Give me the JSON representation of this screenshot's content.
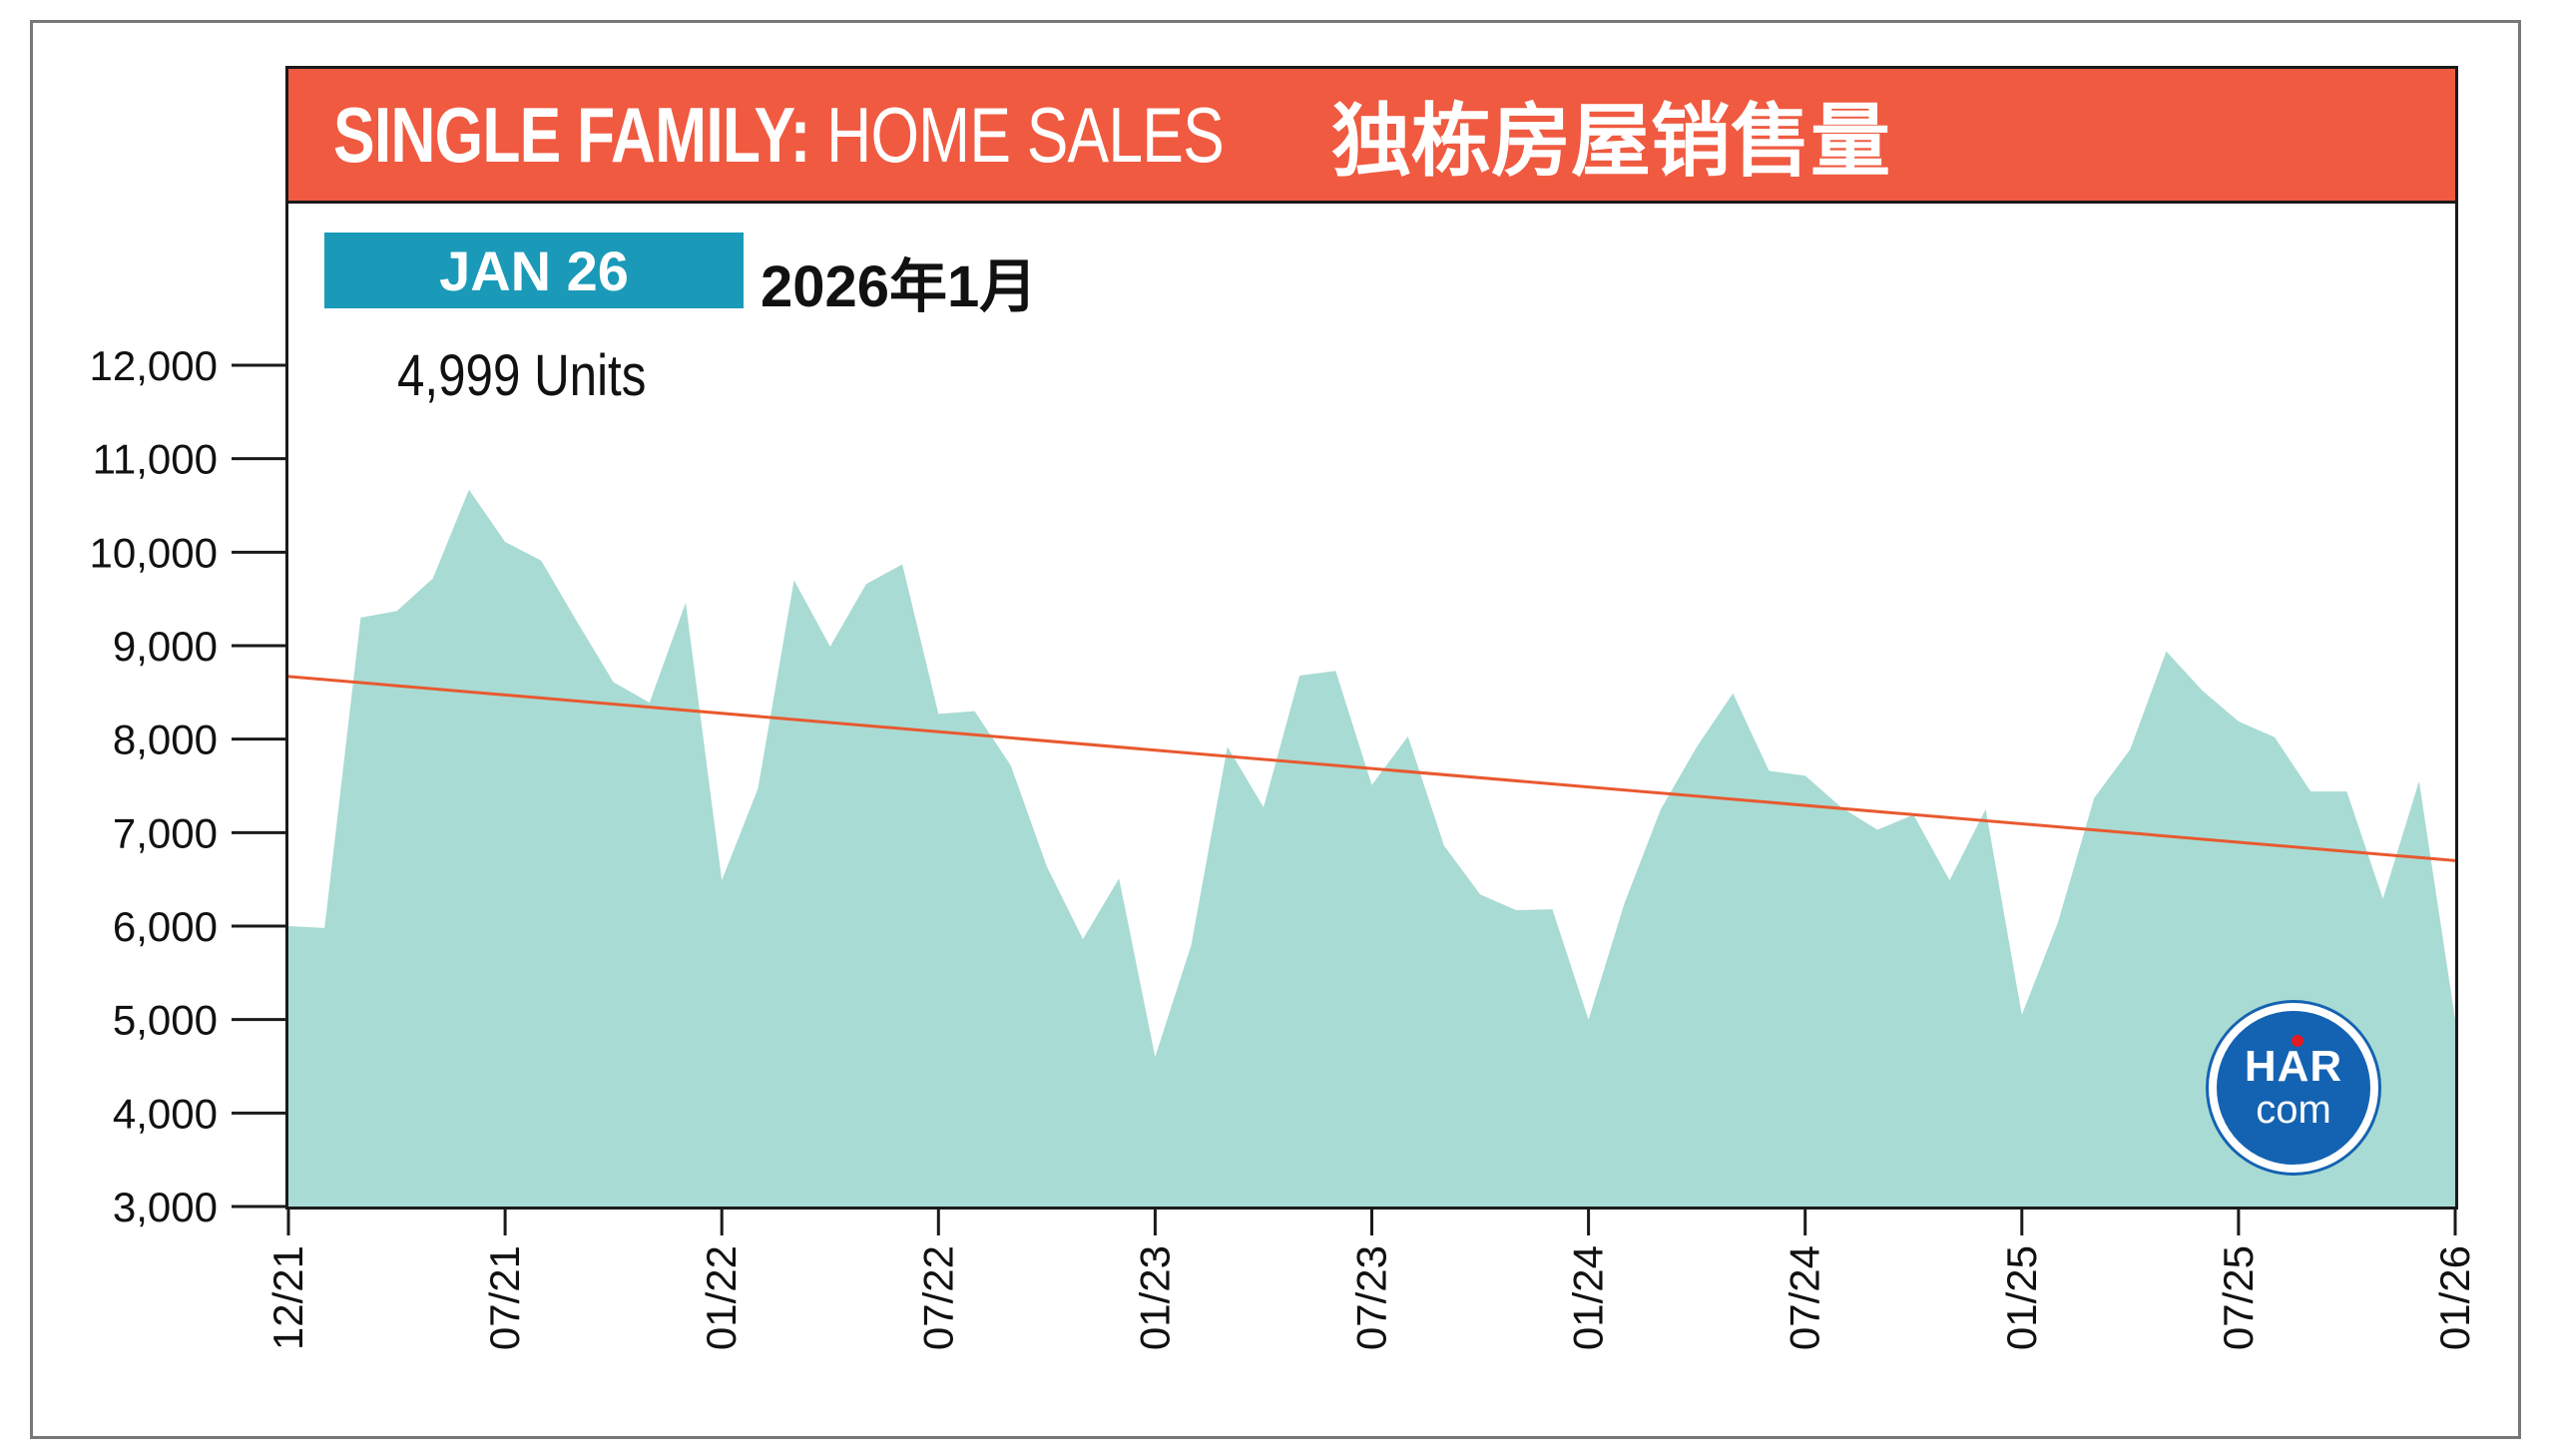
{
  "colors": {
    "title_bar": "#F05A40",
    "badge": "#1A9AB8",
    "area_fill": "#A8DBD3",
    "trend_line": "#E8592F",
    "logo_bg": "#1463B2",
    "logo_dot": "#E31B23"
  },
  "header": {
    "title_en_bold": "SINGLE FAMILY:",
    "title_en_rest": " HOME SALES",
    "title_zh": "独栋房屋销售量"
  },
  "badge": {
    "date_en": "JAN 26",
    "date_zh": "2026年1月",
    "units": "4,999 Units"
  },
  "logo": {
    "top": "HAR",
    "bottom": "com"
  },
  "chart_data": {
    "type": "area",
    "title": "SINGLE FAMILY: HOME SALES 独栋房屋销售量",
    "xlabel": "",
    "ylabel": "",
    "ylim": [
      3000,
      12000
    ],
    "yticks": [
      3000,
      4000,
      5000,
      6000,
      7000,
      8000,
      9000,
      10000,
      11000,
      12000
    ],
    "ytick_labels": [
      "3,000",
      "4,000",
      "5,000",
      "6,000",
      "7,000",
      "8,000",
      "9,000",
      "10,000",
      "11,000",
      "12,000"
    ],
    "xtick_labels": [
      "12/21",
      "07/21",
      "01/22",
      "07/22",
      "01/23",
      "07/23",
      "01/24",
      "07/24",
      "01/25",
      "07/25",
      "01/26"
    ],
    "grid": false,
    "legend": "none",
    "x": [
      "01/21",
      "02/21",
      "03/21",
      "04/21",
      "05/21",
      "06/21",
      "07/21",
      "08/21",
      "09/21",
      "10/21",
      "11/21",
      "12/21",
      "01/22",
      "02/22",
      "03/22",
      "04/22",
      "05/22",
      "06/22",
      "07/22",
      "08/22",
      "09/22",
      "10/22",
      "11/22",
      "12/22",
      "01/23",
      "02/23",
      "03/23",
      "04/23",
      "05/23",
      "06/23",
      "07/23",
      "08/23",
      "09/23",
      "10/23",
      "11/23",
      "12/23",
      "01/24",
      "02/24",
      "03/24",
      "04/24",
      "05/24",
      "06/24",
      "07/24",
      "08/24",
      "09/24",
      "10/24",
      "11/24",
      "12/24",
      "01/25",
      "02/25",
      "03/25",
      "04/25",
      "05/25",
      "06/25",
      "07/25",
      "08/25",
      "09/25",
      "10/25",
      "11/25",
      "12/25",
      "01/26"
    ],
    "series": [
      {
        "values": [
          6000,
          5980,
          9300,
          9370,
          9720,
          10670,
          10110,
          9910,
          9250,
          8610,
          8390,
          9460,
          6490,
          7470,
          9700,
          8990,
          9660,
          9870,
          8270,
          8300,
          7720,
          6640,
          5860,
          6510,
          4600,
          5800,
          7920,
          7270,
          8680,
          8730,
          7510,
          8030,
          6860,
          6340,
          6170,
          6180,
          5000,
          6250,
          7250,
          7920,
          8490,
          7660,
          7610,
          7270,
          7030,
          7190,
          6490,
          7250,
          5050,
          6040,
          7370,
          7890,
          8940,
          8520,
          8190,
          8020,
          7440,
          7440,
          6290,
          7550,
          4999
        ]
      }
    ],
    "trend": {
      "start": 8670,
      "end": 6700
    }
  }
}
